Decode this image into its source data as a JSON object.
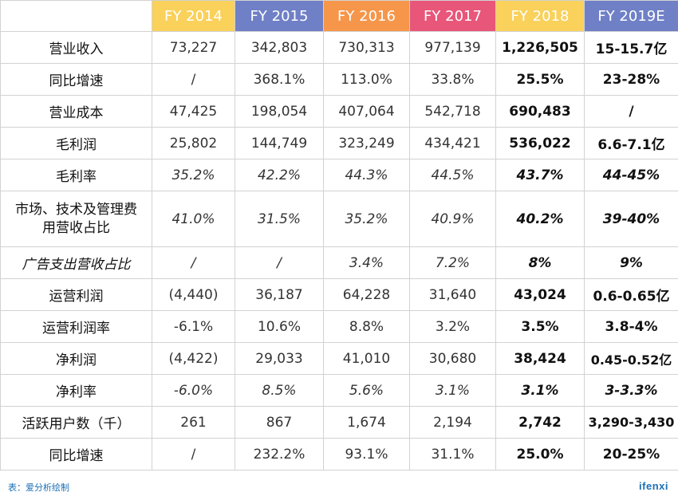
{
  "table": {
    "headers": [
      {
        "label": "FY 2014",
        "color": "#f9d15b"
      },
      {
        "label": "FY 2015",
        "color": "#6f80c6"
      },
      {
        "label": "FY 2016",
        "color": "#f5964b"
      },
      {
        "label": "FY 2017",
        "color": "#e8567a"
      },
      {
        "label": "FY 2018",
        "color": "#f9d15b"
      },
      {
        "label": "FY 2019E",
        "color": "#6f80c6"
      }
    ],
    "rows": [
      {
        "label": "营业收入",
        "values": [
          "73,227",
          "342,803",
          "730,313",
          "977,139",
          "1,226,505",
          "15-15.7亿"
        ]
      },
      {
        "label": "同比增速",
        "values": [
          "/",
          "368.1%",
          "113.0%",
          "33.8%",
          "25.5%",
          "23-28%"
        ]
      },
      {
        "label": "营业成本",
        "values": [
          "47,425",
          "198,054",
          "407,064",
          "542,718",
          "690,483",
          "/"
        ]
      },
      {
        "label": "毛利润",
        "values": [
          "25,802",
          "144,749",
          "323,249",
          "434,421",
          "536,022",
          "6.6-7.1亿"
        ]
      },
      {
        "label": "毛利率",
        "values": [
          "35.2%",
          "42.2%",
          "44.3%",
          "44.5%",
          "43.7%",
          "44-45%"
        ]
      },
      {
        "label": "市场、技术及管理费用营收占比",
        "values": [
          "41.0%",
          "31.5%",
          "35.2%",
          "40.9%",
          "40.2%",
          "39-40%"
        ]
      },
      {
        "label": "广告支出营收占比",
        "values": [
          "/",
          "/",
          "3.4%",
          "7.2%",
          "8%",
          "9%"
        ]
      },
      {
        "label": "运营利润",
        "values": [
          "(4,440)",
          "36,187",
          "64,228",
          "31,640",
          "43,024",
          "0.6-0.65亿"
        ]
      },
      {
        "label": "运营利润率",
        "values": [
          "-6.1%",
          "10.6%",
          "8.8%",
          "3.2%",
          "3.5%",
          "3.8-4%"
        ]
      },
      {
        "label": "净利润",
        "values": [
          "(4,422)",
          "29,033",
          "41,010",
          "30,680",
          "38,424",
          "0.45-0.52亿"
        ]
      },
      {
        "label": "净利率",
        "values": [
          "-6.0%",
          "8.5%",
          "5.6%",
          "3.1%",
          "3.1%",
          "3-3.3%"
        ]
      },
      {
        "label": "活跃用户数（千）",
        "values": [
          "261",
          "867",
          "1,674",
          "2,194",
          "2,742",
          "3,290-3,430"
        ]
      },
      {
        "label": "同比增速",
        "values": [
          "/",
          "232.2%",
          "93.1%",
          "31.1%",
          "25.0%",
          "20-25%"
        ]
      }
    ]
  },
  "footer": {
    "note": "表：爱分析绘制",
    "logo": "ifenxi"
  }
}
